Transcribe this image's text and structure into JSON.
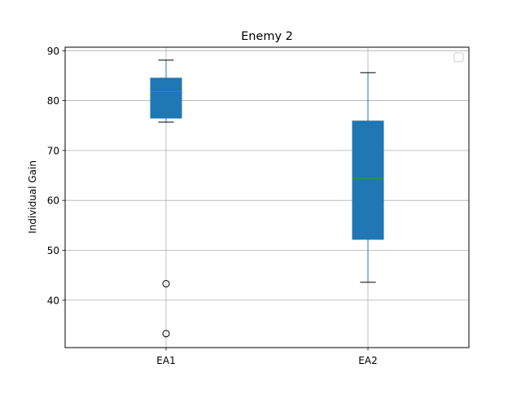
{
  "chart_data": {
    "type": "boxplot",
    "title": "Enemy 2",
    "xlabel": "",
    "ylabel": "Individual Gain",
    "ylim": [
      30.5,
      90.7
    ],
    "yticks": [
      40,
      50,
      60,
      70,
      80,
      90
    ],
    "categories": [
      "EA1",
      "EA2"
    ],
    "boxes": [
      {
        "label": "EA1",
        "whisker_low": 75.7,
        "q1": 76.5,
        "median": 81.8,
        "q3": 84.5,
        "whisker_high": 88.1,
        "outliers": [
          43.3,
          33.3
        ]
      },
      {
        "label": "EA2",
        "whisker_low": 43.6,
        "q1": 52.2,
        "median": 64.4,
        "q3": 75.9,
        "whisker_high": 85.6,
        "outliers": []
      }
    ],
    "grid": true,
    "legend": "top-right, empty",
    "colors": {
      "box_fill": "#1f77b4",
      "median": "#2ca02c",
      "grid": "#b0b0b0",
      "whisker": "#1f77b4",
      "cap": "#000000"
    }
  }
}
